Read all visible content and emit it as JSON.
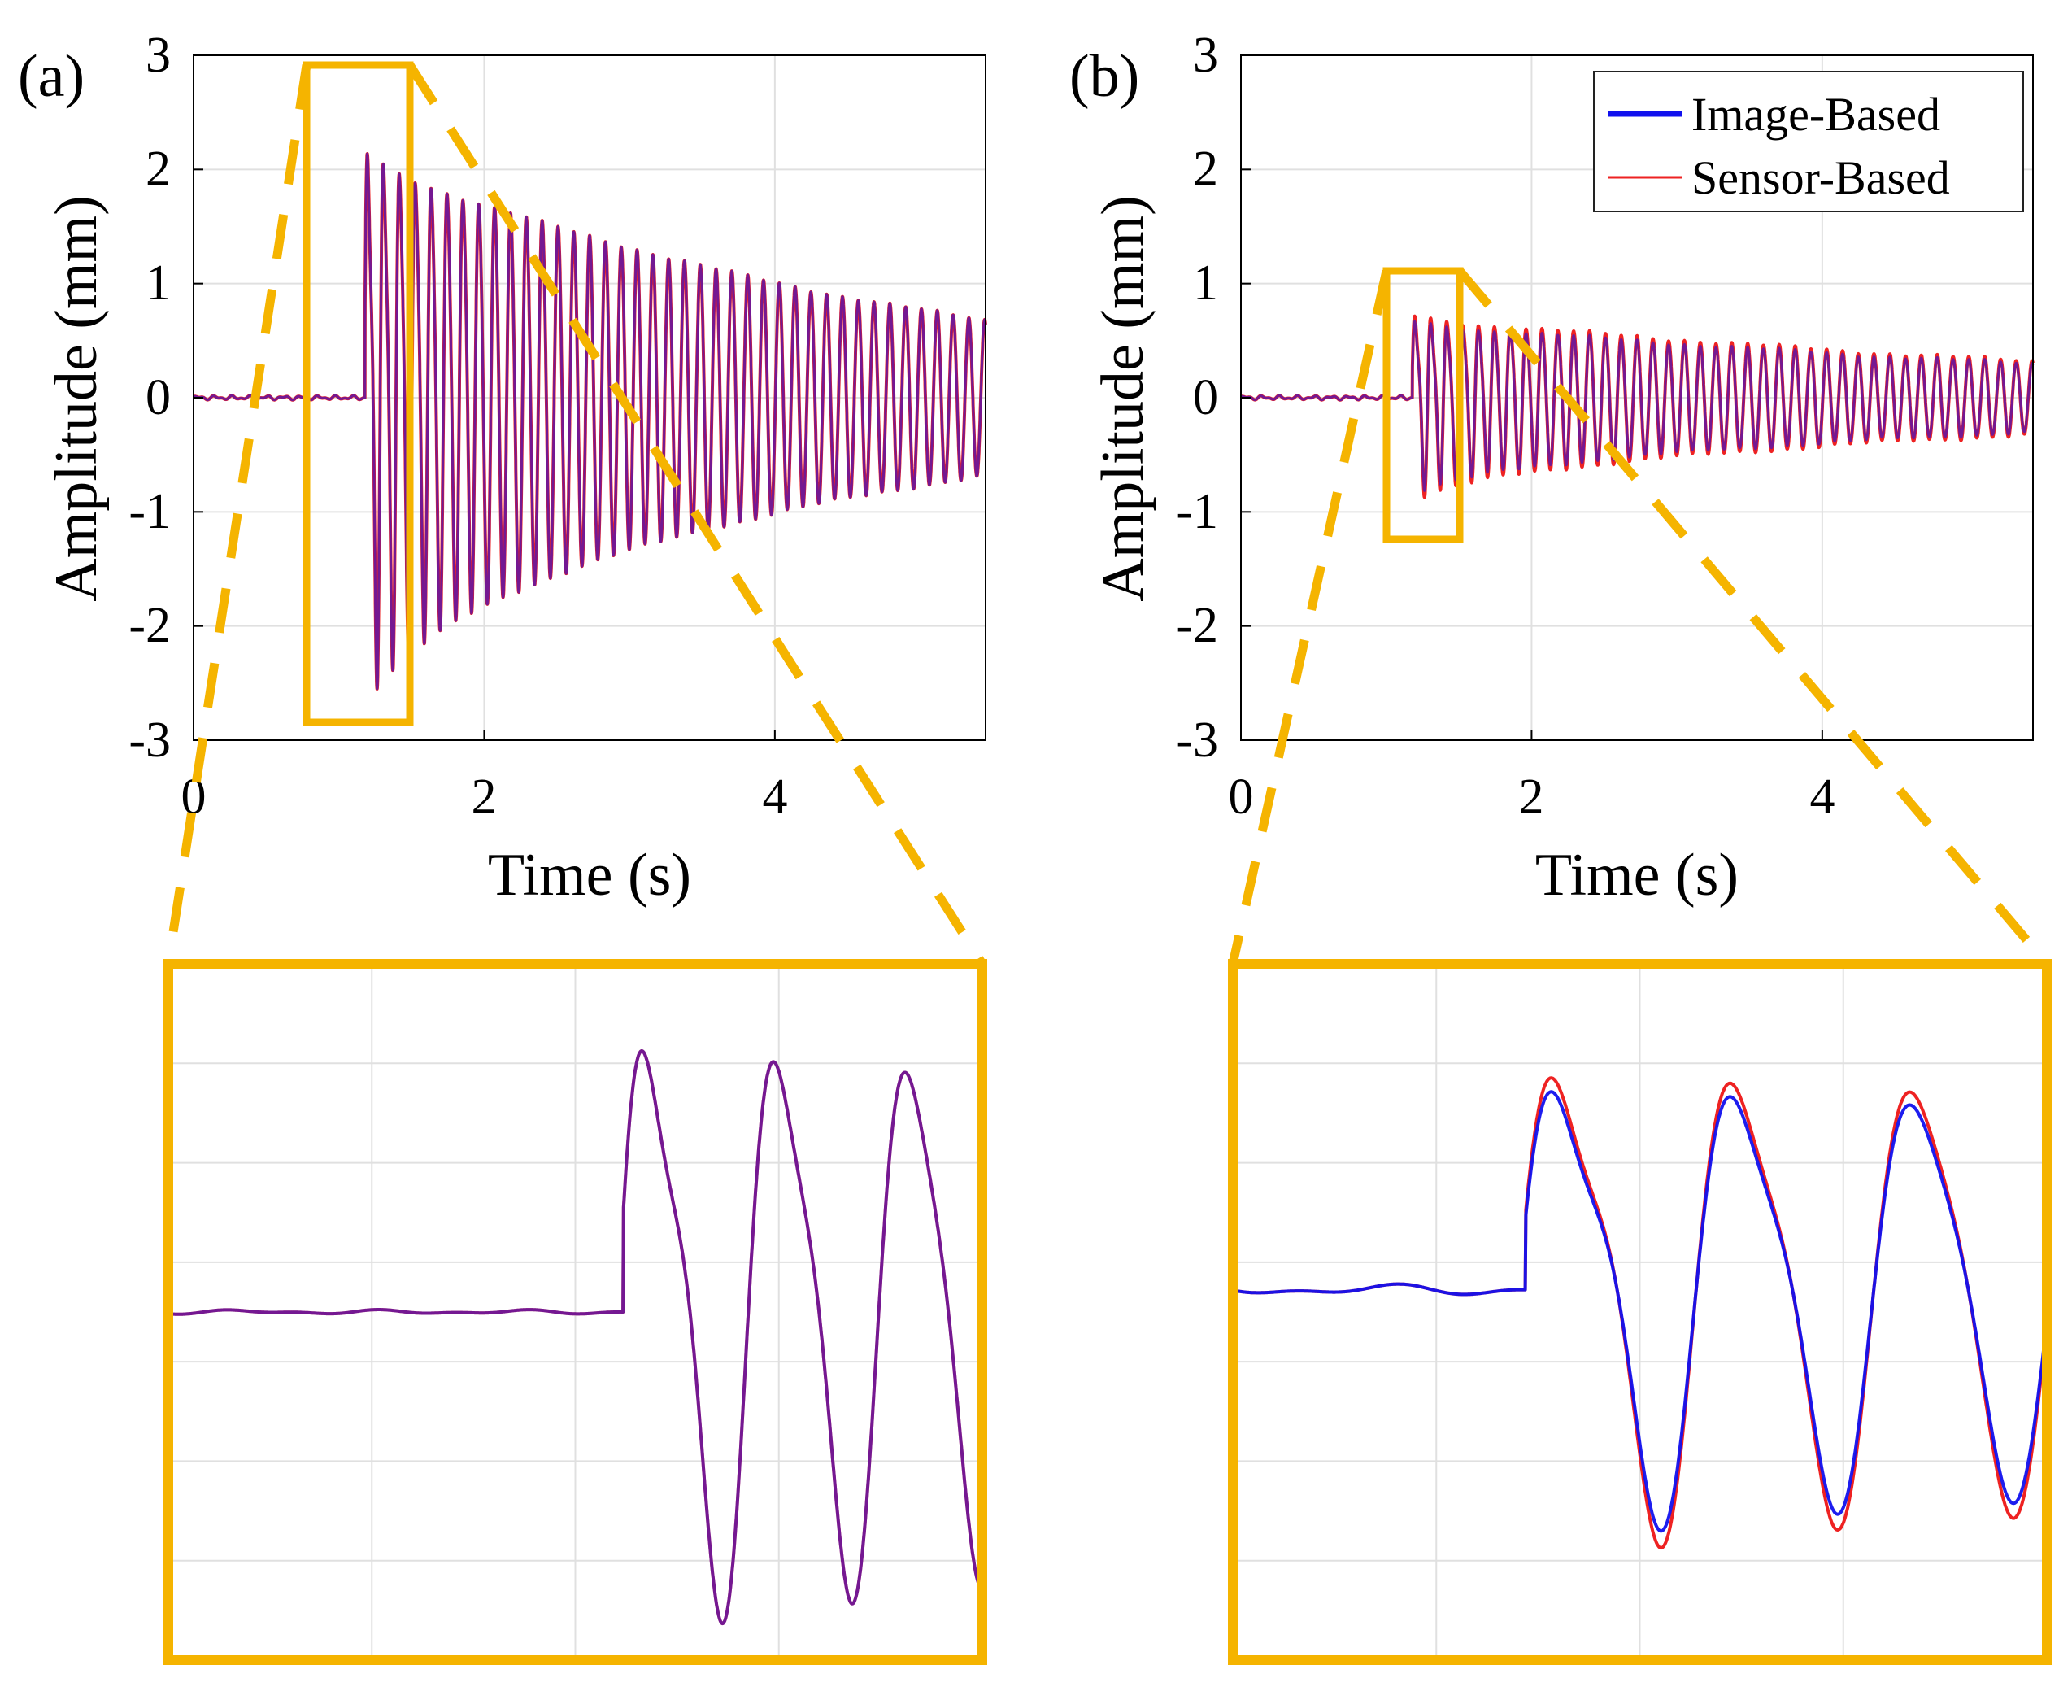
{
  "colors": {
    "image_based": "#1111ee",
    "sensor_based": "#ee2222",
    "zoom_box": "#f5b400",
    "grid": "#e0e0e0",
    "axis": "#000000"
  },
  "chart_data": [
    {
      "id": "a",
      "type": "line",
      "panel_label": "(a)",
      "xlabel": "Time (s)",
      "ylabel": "Amplitude (mm)",
      "xlim": [
        0,
        5.45
      ],
      "ylim": [
        -3,
        3
      ],
      "xticks": [
        0,
        2,
        4
      ],
      "xtick_labels": [
        "0",
        "2",
        "4"
      ],
      "yticks": [
        -3,
        -2,
        -1,
        0,
        1,
        2,
        3
      ],
      "ytick_labels": [
        "-3",
        "-2",
        "-1",
        "0",
        "1",
        "2",
        "3"
      ],
      "grid": true,
      "legend": null,
      "signal": {
        "onset_time": 1.18,
        "duration": 5.45,
        "frequency_hz": 9.2,
        "initial_amplitude": 2.4,
        "final_amplitude": 0.75
      },
      "zoom": {
        "window_x": [
          0.8,
          1.48
        ],
        "window_y": [
          -2.85,
          2.85
        ],
        "series_mismatch": 0.0
      },
      "series": [
        {
          "name": "Image-Based",
          "color_key": "image_based"
        },
        {
          "name": "Sensor-Based",
          "color_key": "sensor_based"
        }
      ]
    },
    {
      "id": "b",
      "type": "line",
      "panel_label": "(b)",
      "xlabel": "Time (s)",
      "ylabel": "Amplitude (mm)",
      "xlim": [
        0,
        5.45
      ],
      "ylim": [
        -3,
        3
      ],
      "xticks": [
        0,
        2,
        4
      ],
      "xtick_labels": [
        "0",
        "2",
        "4"
      ],
      "yticks": [
        -3,
        -2,
        -1,
        0,
        1,
        2,
        3
      ],
      "ytick_labels": [
        "-3",
        "-2",
        "-1",
        "0",
        "1",
        "2",
        "3"
      ],
      "grid": true,
      "legend": {
        "location": "top-right",
        "entries": [
          "Image-Based",
          "Sensor-Based"
        ]
      },
      "signal": {
        "onset_time": 1.18,
        "duration": 5.45,
        "frequency_hz": 9.2,
        "initial_amplitude": 0.75,
        "final_amplitude": 0.33
      },
      "zoom": {
        "window_x": [
          1.0,
          1.5
        ],
        "window_y": [
          -1.25,
          1.1
        ],
        "series_mismatch": 0.07
      },
      "series": [
        {
          "name": "Image-Based",
          "color_key": "image_based"
        },
        {
          "name": "Sensor-Based",
          "color_key": "sensor_based"
        }
      ]
    }
  ]
}
